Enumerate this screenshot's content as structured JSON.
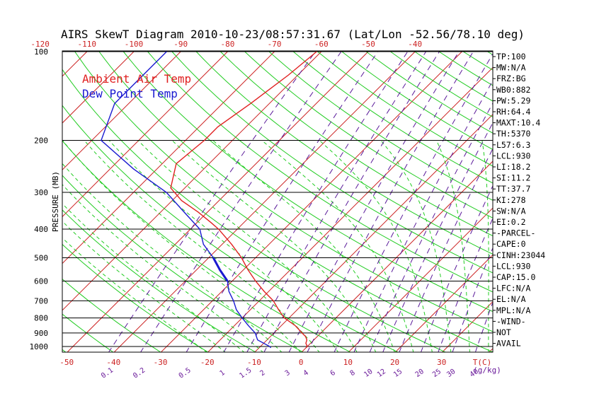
{
  "title": "AIRS SkewT Diagram 2010-10-23/08:57:31.67 (Lat/Lon -52.56/78.10 deg)",
  "legend": [
    {
      "label": "Ambient Air Temp",
      "color": "#e02020"
    },
    {
      "label": "Dew Point Temp",
      "color": "#1a1ad0"
    }
  ],
  "colors": {
    "isotherm": "#cc2222",
    "dry_adiabat": "#22cc22",
    "moist_adiabat": "#22cc22",
    "mixing_ratio": "#5a1a9a",
    "isobar": "#000000",
    "temperature": "#e02020",
    "dewpoint": "#1a1ad0",
    "mixing_label": "#6a1a9a",
    "axis_text": "#000000",
    "temp_label": "#cc2222"
  },
  "chart_data": {
    "type": "line",
    "ylabel": "PRESSURE (MB)",
    "xlabel": "T(C)",
    "mixing_ratio_unit": "(g/kg)",
    "y_scale": "log",
    "ylim": [
      1050,
      100
    ],
    "pressure_ticks": [
      100,
      200,
      300,
      400,
      500,
      600,
      700,
      800,
      900,
      1000
    ],
    "bottom_temp_ticks": [
      -50,
      -40,
      -30,
      -20,
      -10,
      0,
      10,
      20,
      30
    ],
    "top_temp_ticks": [
      -120,
      -110,
      -100,
      -90,
      -80,
      -70,
      -60,
      -50,
      -40
    ],
    "mixing_ratio_ticks": [
      "0.1",
      "0.2",
      "0.5",
      "1",
      "1.5",
      "2",
      "3",
      "4",
      "6",
      "8",
      "10",
      "12",
      "15",
      "20",
      "25",
      "30",
      "40"
    ],
    "series": [
      {
        "name": "Ambient Air Temp",
        "pressure": [
          100,
          120,
          150,
          180,
          200,
          240,
          290,
          320,
          350,
          380,
          400,
          450,
          500,
          550,
          600,
          650,
          700,
          750,
          800,
          850,
          900,
          925,
          950,
          975,
          1000,
          1010
        ],
        "temperature": [
          -61,
          -62,
          -64,
          -66,
          -66,
          -67,
          -63,
          -58,
          -52,
          -47,
          -44,
          -38,
          -33,
          -29,
          -25,
          -21,
          -17,
          -14,
          -11,
          -7,
          -4,
          -2.5,
          -1.5,
          -1,
          0,
          0
        ]
      },
      {
        "name": "Dew Point Temp",
        "pressure": [
          100,
          150,
          200,
          250,
          300,
          350,
          400,
          450,
          500,
          550,
          600,
          650,
          700,
          750,
          800,
          850,
          900,
          950,
          1000,
          1010
        ],
        "temperature": [
          -93,
          -93,
          -88,
          -75,
          -63,
          -55,
          -48,
          -44,
          -39,
          -35,
          -31,
          -28.5,
          -25.5,
          -23,
          -20,
          -17,
          -14,
          -12,
          -8,
          -7.5
        ]
      }
    ]
  },
  "indices": [
    "TP:100",
    "MW:N/A",
    "FRZ:BG",
    "WB0:882",
    "PW:5.29",
    "RH:64.4",
    "MAXT:10.4",
    "TH:5370",
    "L57:6.3",
    "LCL:930",
    "LI:18.2",
    "SI:11.2",
    "TT:37.7",
    "KI:278",
    "SW:N/A",
    "EI:0.2",
    "-PARCEL-",
    "CAPE:0",
    "CINH:23044",
    "LCL:930",
    "CAP:15.0",
    "LFC:N/A",
    "EL:N/A",
    "MPL:N/A",
    "-WIND-",
    "NOT",
    "AVAIL"
  ]
}
